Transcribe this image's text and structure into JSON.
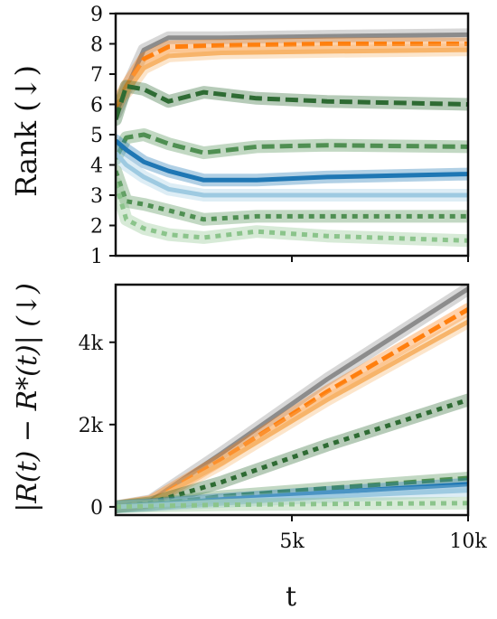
{
  "chart_data": [
    {
      "type": "line",
      "ylabel": "Rank (↓)",
      "ylim": [
        1,
        9
      ],
      "xlim": [
        0,
        10000
      ],
      "yticks": [
        "1",
        "2",
        "3",
        "4",
        "5",
        "6",
        "7",
        "8",
        "9"
      ],
      "xticks": [
        5000,
        10000
      ],
      "colors": {
        "gray": "#8c8c8c",
        "orange": "#ff7f0e",
        "light_orange": "#f7b46a",
        "dark_green": "#2e6b33",
        "green": "#4f8f52",
        "light_green": "#8bc48b",
        "blue": "#1f77b4",
        "light_blue": "#9ecae1"
      },
      "series": [
        {
          "color": "gray",
          "style": "solid",
          "points": [
            [
              0,
              5.7
            ],
            [
              300,
              6.5
            ],
            [
              800,
              7.8
            ],
            [
              1500,
              8.2
            ],
            [
              3000,
              8.2
            ],
            [
              6000,
              8.25
            ],
            [
              10000,
              8.3
            ]
          ]
        },
        {
          "color": "orange",
          "style": "dashed",
          "points": [
            [
              0,
              5.9
            ],
            [
              300,
              6.6
            ],
            [
              800,
              7.5
            ],
            [
              1500,
              7.9
            ],
            [
              3000,
              7.95
            ],
            [
              6000,
              8.0
            ],
            [
              10000,
              8.0
            ]
          ]
        },
        {
          "color": "light_orange",
          "style": "solid",
          "points": [
            [
              0,
              6.2
            ],
            [
              300,
              6.4
            ],
            [
              800,
              7.2
            ],
            [
              1500,
              7.6
            ],
            [
              3000,
              7.7
            ],
            [
              6000,
              7.75
            ],
            [
              10000,
              7.8
            ]
          ]
        },
        {
          "color": "dark_green",
          "style": "dashed",
          "points": [
            [
              0,
              5.5
            ],
            [
              300,
              6.6
            ],
            [
              800,
              6.5
            ],
            [
              1500,
              6.1
            ],
            [
              2500,
              6.4
            ],
            [
              4000,
              6.2
            ],
            [
              6000,
              6.1
            ],
            [
              10000,
              6.0
            ]
          ]
        },
        {
          "color": "green",
          "style": "dashed",
          "points": [
            [
              0,
              4.2
            ],
            [
              300,
              4.9
            ],
            [
              800,
              5.0
            ],
            [
              1500,
              4.7
            ],
            [
              2500,
              4.4
            ],
            [
              4000,
              4.6
            ],
            [
              6000,
              4.65
            ],
            [
              10000,
              4.6
            ]
          ]
        },
        {
          "color": "blue",
          "style": "solid",
          "points": [
            [
              0,
              4.8
            ],
            [
              300,
              4.5
            ],
            [
              800,
              4.1
            ],
            [
              1500,
              3.8
            ],
            [
              2500,
              3.5
            ],
            [
              4000,
              3.5
            ],
            [
              6000,
              3.6
            ],
            [
              10000,
              3.7
            ]
          ]
        },
        {
          "color": "light_blue",
          "style": "solid",
          "points": [
            [
              0,
              4.4
            ],
            [
              300,
              4.0
            ],
            [
              800,
              3.6
            ],
            [
              1500,
              3.2
            ],
            [
              2500,
              3.0
            ],
            [
              4000,
              3.0
            ],
            [
              6000,
              3.0
            ],
            [
              10000,
              3.0
            ]
          ]
        },
        {
          "color": "green",
          "style": "dotted",
          "points": [
            [
              0,
              3.8
            ],
            [
              300,
              2.8
            ],
            [
              800,
              2.7
            ],
            [
              1500,
              2.5
            ],
            [
              2500,
              2.2
            ],
            [
              4000,
              2.3
            ],
            [
              6000,
              2.3
            ],
            [
              10000,
              2.3
            ]
          ]
        },
        {
          "color": "light_green",
          "style": "dotted",
          "points": [
            [
              0,
              3.4
            ],
            [
              300,
              2.2
            ],
            [
              800,
              1.9
            ],
            [
              1500,
              1.7
            ],
            [
              2500,
              1.6
            ],
            [
              4000,
              1.8
            ],
            [
              6000,
              1.65
            ],
            [
              10000,
              1.5
            ]
          ]
        }
      ]
    },
    {
      "type": "line",
      "ylabel": "|R(t) − R*(t)| (↓)",
      "xlabel": "t",
      "ylim": [
        -200,
        5400
      ],
      "xlim": [
        0,
        10000
      ],
      "yticks": [
        "0",
        "2k",
        "4k"
      ],
      "xticks": [
        "5k",
        "10k"
      ],
      "series": [
        {
          "color": "gray",
          "style": "solid",
          "points": [
            [
              0,
              0
            ],
            [
              1000,
              150
            ],
            [
              3000,
              1300
            ],
            [
              6000,
              3100
            ],
            [
              10000,
              5300
            ]
          ]
        },
        {
          "color": "orange",
          "style": "dashed",
          "points": [
            [
              0,
              0
            ],
            [
              1000,
              130
            ],
            [
              3000,
              1150
            ],
            [
              6000,
              2800
            ],
            [
              10000,
              4800
            ]
          ]
        },
        {
          "color": "light_orange",
          "style": "solid",
          "points": [
            [
              0,
              0
            ],
            [
              1000,
              120
            ],
            [
              3000,
              1050
            ],
            [
              6000,
              2600
            ],
            [
              10000,
              4500
            ]
          ]
        },
        {
          "color": "dark_green",
          "style": "dotted",
          "points": [
            [
              0,
              0
            ],
            [
              1000,
              100
            ],
            [
              3000,
              600
            ],
            [
              6000,
              1500
            ],
            [
              10000,
              2600
            ]
          ]
        },
        {
          "color": "green",
          "style": "dashed",
          "points": [
            [
              0,
              0
            ],
            [
              1000,
              60
            ],
            [
              3000,
              250
            ],
            [
              6000,
              450
            ],
            [
              10000,
              700
            ]
          ]
        },
        {
          "color": "blue",
          "style": "solid",
          "points": [
            [
              0,
              0
            ],
            [
              1000,
              50
            ],
            [
              3000,
              180
            ],
            [
              6000,
              350
            ],
            [
              10000,
              550
            ]
          ]
        },
        {
          "color": "light_blue",
          "style": "solid",
          "points": [
            [
              0,
              0
            ],
            [
              1000,
              40
            ],
            [
              3000,
              130
            ],
            [
              6000,
              250
            ],
            [
              10000,
              400
            ]
          ]
        },
        {
          "color": "light_green",
          "style": "dotted",
          "points": [
            [
              0,
              0
            ],
            [
              1000,
              20
            ],
            [
              3000,
              50
            ],
            [
              6000,
              70
            ],
            [
              10000,
              90
            ]
          ]
        }
      ]
    }
  ]
}
